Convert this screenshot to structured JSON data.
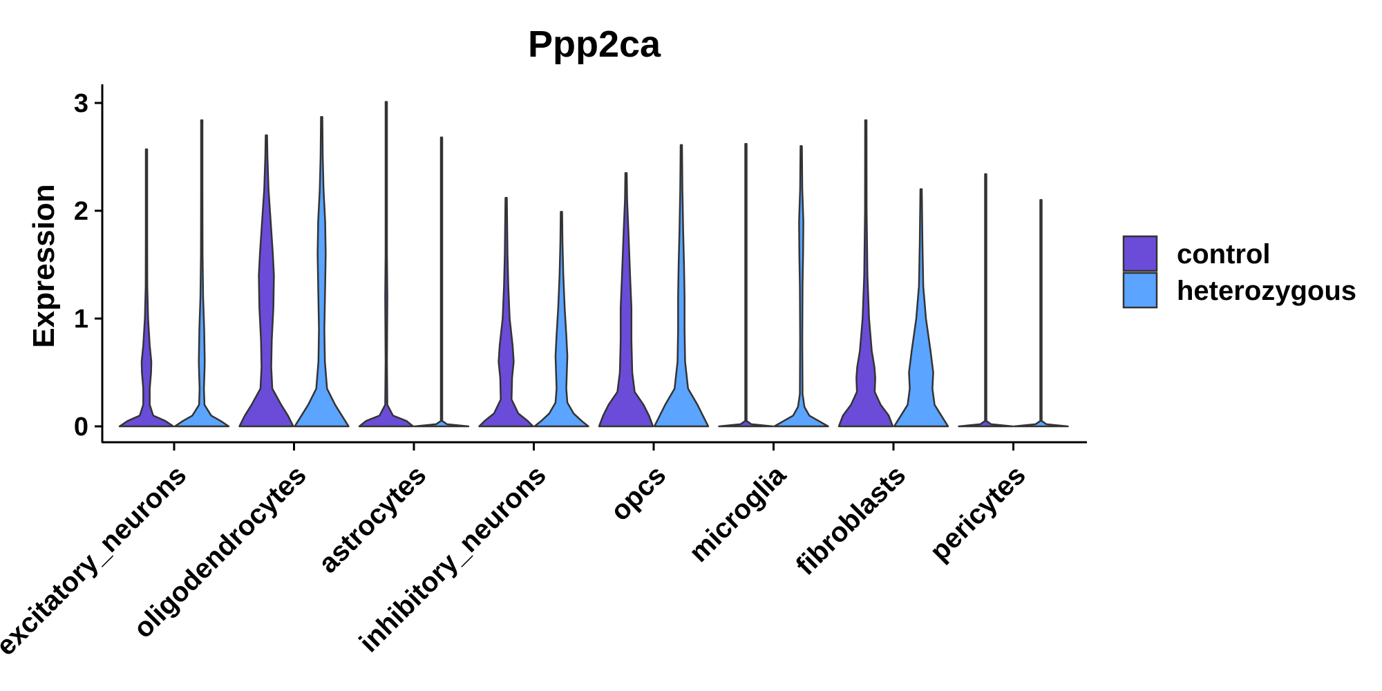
{
  "chart_data": {
    "type": "violin",
    "title": "Ppp2ca",
    "xlabel": "",
    "ylabel": "Expression",
    "ylim": [
      -0.15,
      3.2
    ],
    "yticks": [
      "0",
      "1",
      "2",
      "3"
    ],
    "categories": [
      "excitatory_neurons",
      "oligodendrocytes",
      "astrocytes",
      "inhibitory_neurons",
      "opcs",
      "microglia",
      "fibroblasts",
      "pericytes"
    ],
    "legend_position": "right",
    "series": [
      {
        "name": "control",
        "color": "#6A4CD9",
        "violins": [
          {
            "max": 2.57,
            "density": [
              [
                0,
                1.0
              ],
              [
                0.05,
                0.7
              ],
              [
                0.1,
                0.25
              ],
              [
                0.2,
                0.12
              ],
              [
                0.35,
                0.12
              ],
              [
                0.5,
                0.17
              ],
              [
                0.6,
                0.18
              ],
              [
                0.75,
                0.12
              ],
              [
                1.0,
                0.06
              ],
              [
                1.3,
                0.03
              ],
              [
                1.8,
                0.02
              ],
              [
                2.57,
                0.01
              ]
            ]
          },
          {
            "max": 2.7,
            "density": [
              [
                0,
                1.0
              ],
              [
                0.1,
                0.8
              ],
              [
                0.2,
                0.55
              ],
              [
                0.35,
                0.22
              ],
              [
                0.55,
                0.18
              ],
              [
                0.8,
                0.2
              ],
              [
                1.1,
                0.26
              ],
              [
                1.4,
                0.28
              ],
              [
                1.6,
                0.24
              ],
              [
                1.9,
                0.16
              ],
              [
                2.2,
                0.08
              ],
              [
                2.5,
                0.04
              ],
              [
                2.7,
                0.01
              ]
            ]
          },
          {
            "max": 3.01,
            "density": [
              [
                0,
                1.0
              ],
              [
                0.05,
                0.75
              ],
              [
                0.1,
                0.25
              ],
              [
                0.2,
                0.04
              ],
              [
                0.6,
                0.02
              ],
              [
                1.2,
                0.04
              ],
              [
                1.6,
                0.02
              ],
              [
                2.2,
                0.015
              ],
              [
                3.01,
                0.008
              ]
            ]
          },
          {
            "max": 2.12,
            "density": [
              [
                0,
                1.0
              ],
              [
                0.05,
                0.8
              ],
              [
                0.12,
                0.45
              ],
              [
                0.25,
                0.2
              ],
              [
                0.45,
                0.22
              ],
              [
                0.6,
                0.28
              ],
              [
                0.75,
                0.24
              ],
              [
                1.0,
                0.13
              ],
              [
                1.3,
                0.08
              ],
              [
                1.6,
                0.05
              ],
              [
                2.12,
                0.01
              ]
            ]
          },
          {
            "max": 2.35,
            "density": [
              [
                0,
                1.0
              ],
              [
                0.1,
                0.85
              ],
              [
                0.2,
                0.65
              ],
              [
                0.32,
                0.32
              ],
              [
                0.5,
                0.23
              ],
              [
                0.8,
                0.2
              ],
              [
                1.1,
                0.2
              ],
              [
                1.4,
                0.15
              ],
              [
                1.8,
                0.09
              ],
              [
                2.1,
                0.04
              ],
              [
                2.35,
                0.01
              ]
            ]
          },
          {
            "max": 2.62,
            "density": [
              [
                0,
                1.0
              ],
              [
                0.02,
                0.2
              ],
              [
                0.05,
                0.02
              ],
              [
                1.6,
                0.015
              ],
              [
                2.62,
                0.008
              ]
            ]
          },
          {
            "max": 2.84,
            "density": [
              [
                0,
                1.0
              ],
              [
                0.1,
                0.85
              ],
              [
                0.2,
                0.55
              ],
              [
                0.32,
                0.33
              ],
              [
                0.45,
                0.35
              ],
              [
                0.55,
                0.32
              ],
              [
                0.7,
                0.22
              ],
              [
                1.0,
                0.12
              ],
              [
                1.4,
                0.06
              ],
              [
                2.0,
                0.03
              ],
              [
                2.84,
                0.01
              ]
            ]
          },
          {
            "max": 2.34,
            "density": [
              [
                0,
                1.0
              ],
              [
                0.02,
                0.2
              ],
              [
                0.05,
                0.02
              ],
              [
                1.0,
                0.015
              ],
              [
                2.34,
                0.008
              ]
            ]
          }
        ]
      },
      {
        "name": "heterozygous",
        "color": "#5BA4FF",
        "violins": [
          {
            "max": 2.84,
            "density": [
              [
                0,
                1.0
              ],
              [
                0.05,
                0.7
              ],
              [
                0.1,
                0.35
              ],
              [
                0.2,
                0.1
              ],
              [
                0.35,
                0.08
              ],
              [
                0.5,
                0.1
              ],
              [
                0.6,
                0.11
              ],
              [
                0.9,
                0.09
              ],
              [
                1.2,
                0.05
              ],
              [
                1.6,
                0.03
              ],
              [
                2.2,
                0.02
              ],
              [
                2.84,
                0.01
              ]
            ]
          },
          {
            "max": 2.87,
            "density": [
              [
                0,
                1.0
              ],
              [
                0.1,
                0.75
              ],
              [
                0.2,
                0.5
              ],
              [
                0.35,
                0.2
              ],
              [
                0.6,
                0.12
              ],
              [
                0.9,
                0.1
              ],
              [
                1.3,
                0.13
              ],
              [
                1.6,
                0.15
              ],
              [
                1.9,
                0.13
              ],
              [
                2.2,
                0.07
              ],
              [
                2.5,
                0.04
              ],
              [
                2.87,
                0.01
              ]
            ]
          },
          {
            "max": 2.68,
            "density": [
              [
                0,
                1.0
              ],
              [
                0.02,
                0.2
              ],
              [
                0.05,
                0.015
              ],
              [
                1.5,
                0.012
              ],
              [
                2.68,
                0.008
              ]
            ]
          },
          {
            "max": 1.99,
            "density": [
              [
                0,
                1.0
              ],
              [
                0.05,
                0.75
              ],
              [
                0.12,
                0.45
              ],
              [
                0.22,
                0.22
              ],
              [
                0.35,
                0.18
              ],
              [
                0.5,
                0.2
              ],
              [
                0.65,
                0.22
              ],
              [
                0.85,
                0.18
              ],
              [
                1.1,
                0.12
              ],
              [
                1.4,
                0.07
              ],
              [
                1.7,
                0.04
              ],
              [
                1.99,
                0.01
              ]
            ]
          },
          {
            "max": 2.61,
            "density": [
              [
                0,
                1.0
              ],
              [
                0.1,
                0.8
              ],
              [
                0.2,
                0.6
              ],
              [
                0.35,
                0.25
              ],
              [
                0.6,
                0.14
              ],
              [
                0.9,
                0.12
              ],
              [
                1.2,
                0.12
              ],
              [
                1.5,
                0.1
              ],
              [
                1.8,
                0.07
              ],
              [
                2.2,
                0.04
              ],
              [
                2.61,
                0.01
              ]
            ]
          },
          {
            "max": 2.6,
            "density": [
              [
                0,
                1.0
              ],
              [
                0.05,
                0.65
              ],
              [
                0.1,
                0.3
              ],
              [
                0.18,
                0.12
              ],
              [
                0.3,
                0.05
              ],
              [
                0.8,
                0.04
              ],
              [
                1.3,
                0.05
              ],
              [
                1.6,
                0.07
              ],
              [
                1.9,
                0.08
              ],
              [
                2.2,
                0.04
              ],
              [
                2.6,
                0.01
              ]
            ]
          },
          {
            "max": 2.2,
            "density": [
              [
                0,
                1.0
              ],
              [
                0.1,
                0.75
              ],
              [
                0.2,
                0.5
              ],
              [
                0.35,
                0.42
              ],
              [
                0.5,
                0.45
              ],
              [
                0.7,
                0.35
              ],
              [
                1.0,
                0.18
              ],
              [
                1.3,
                0.08
              ],
              [
                1.7,
                0.05
              ],
              [
                2.2,
                0.01
              ]
            ]
          },
          {
            "max": 2.1,
            "density": [
              [
                0,
                1.0
              ],
              [
                0.02,
                0.2
              ],
              [
                0.05,
                0.02
              ],
              [
                1.0,
                0.015
              ],
              [
                2.1,
                0.008
              ]
            ]
          }
        ]
      }
    ]
  }
}
